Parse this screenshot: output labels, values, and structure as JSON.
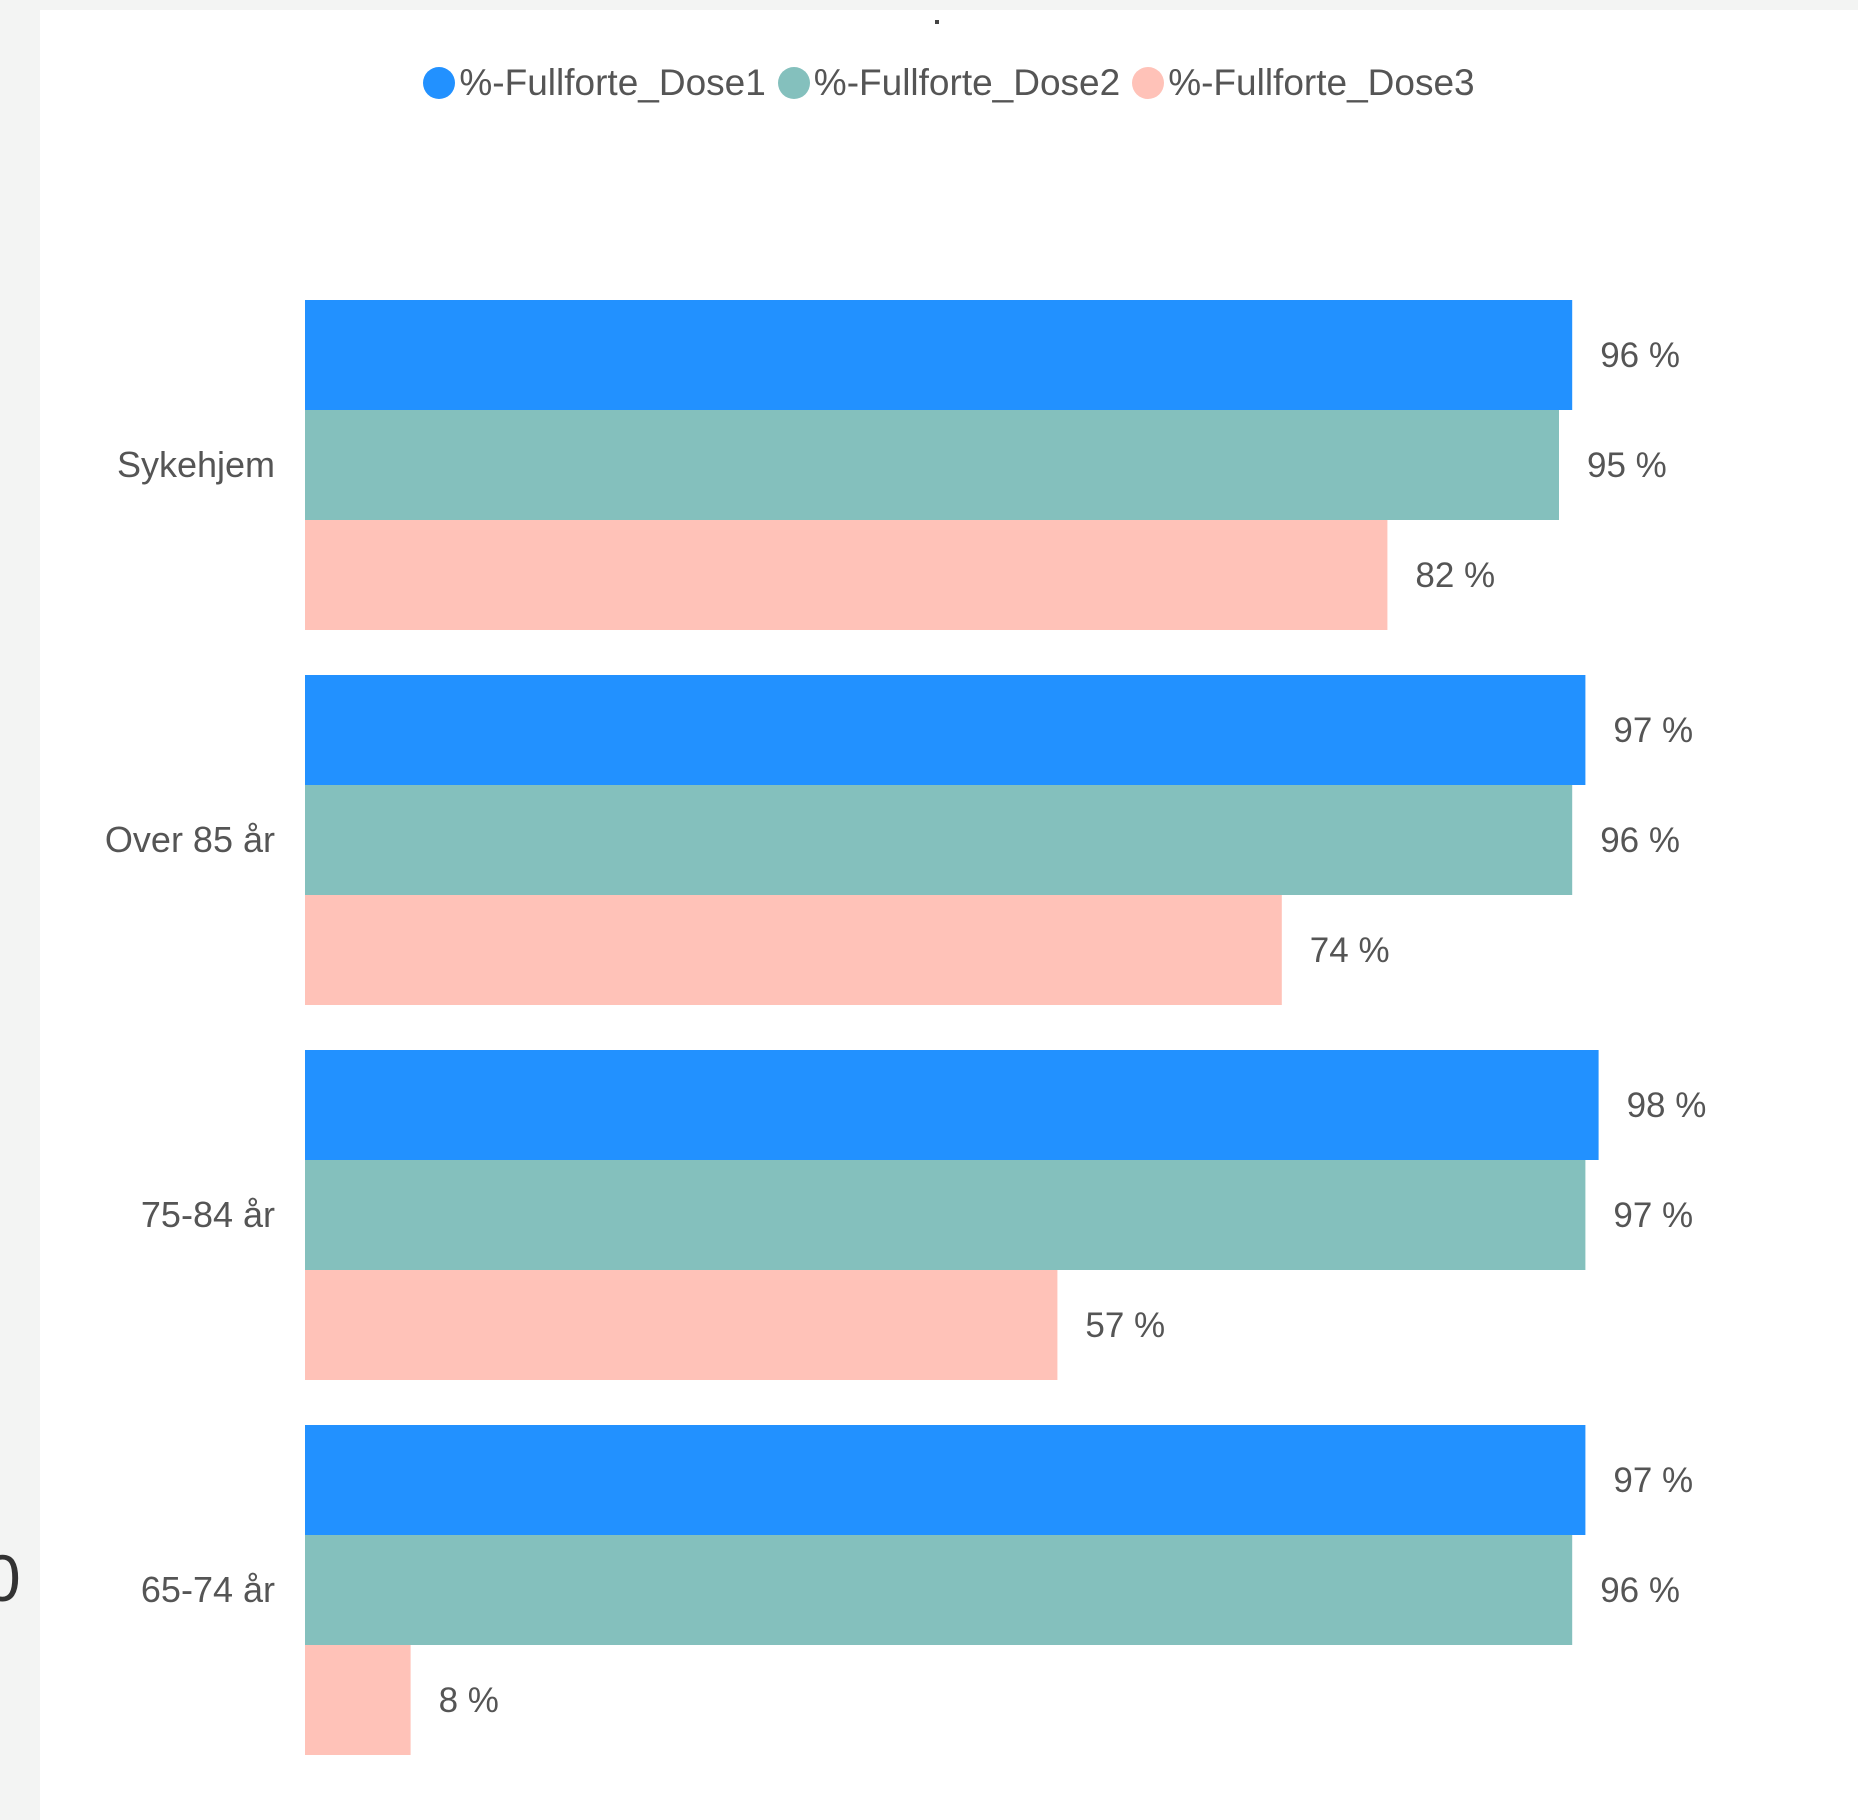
{
  "chart_data": {
    "type": "bar",
    "orientation": "horizontal",
    "title": "",
    "xlabel": "",
    "ylabel": "",
    "xlim": [
      0,
      100
    ],
    "grid": false,
    "legend_position": "top-center",
    "categories": [
      "Sykehjem",
      "Over 85 år",
      "75-84 år",
      "65-74 år"
    ],
    "series": [
      {
        "name": "%-Fullforte_Dose1",
        "color": "#2291FF",
        "values": [
          96,
          97,
          98,
          97
        ],
        "labels": [
          "96 %",
          "97 %",
          "98 %",
          "97 %"
        ]
      },
      {
        "name": "%-Fullforte_Dose2",
        "color": "#84C0BD",
        "values": [
          95,
          96,
          97,
          96
        ],
        "labels": [
          "95 %",
          "96 %",
          "97 %",
          "96 %"
        ]
      },
      {
        "name": "%-Fullforte_Dose3",
        "color": "#FFC2B8",
        "values": [
          82,
          74,
          57,
          8
        ],
        "labels": [
          "82 %",
          "74 %",
          "57 %",
          "8 %"
        ]
      }
    ]
  },
  "edge_fragment": "0"
}
